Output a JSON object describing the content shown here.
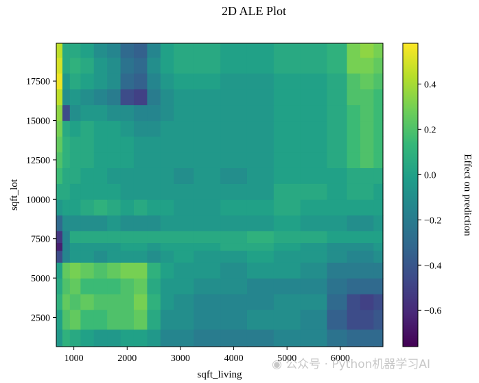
{
  "chart_data": {
    "type": "heatmap",
    "title": "2D ALE Plot",
    "xlabel": "sqft_living",
    "ylabel": "sqft_lot",
    "colorbar_label": "Effect on prediction",
    "colormap": "viridis",
    "xlim": [
      670,
      6800
    ],
    "ylim": [
      650,
      19900
    ],
    "zlim": [
      -0.76,
      0.58
    ],
    "xticks": [
      1000,
      2000,
      3000,
      4000,
      5000,
      6000
    ],
    "yticks": [
      2500,
      5000,
      7500,
      10000,
      12500,
      15000,
      17500
    ],
    "colorbar_ticks": [
      -0.6,
      -0.4,
      -0.2,
      0.0,
      0.2,
      0.4
    ],
    "x_centers": [
      720,
      850,
      1000,
      1250,
      1500,
      1750,
      2000,
      2250,
      2500,
      2750,
      3000,
      3500,
      4000,
      4500,
      5000,
      5500,
      6000,
      6250,
      6500,
      6750
    ],
    "y_centers": [
      1000,
      2500,
      3500,
      4500,
      5500,
      6500,
      7000,
      7500,
      8500,
      9500,
      10500,
      11500,
      12500,
      13500,
      14500,
      15500,
      16500,
      17500,
      18500,
      19500
    ],
    "z": [
      [
        -0.05,
        0.1,
        0.05,
        0.0,
        -0.05,
        -0.05,
        0.0,
        0.0,
        -0.05,
        -0.15,
        -0.15,
        -0.2,
        -0.2,
        -0.2,
        -0.15,
        -0.15,
        -0.25,
        -0.3,
        -0.3,
        -0.3
      ],
      [
        0.0,
        0.2,
        0.25,
        0.15,
        0.15,
        0.2,
        0.2,
        0.25,
        0.05,
        -0.1,
        -0.1,
        -0.15,
        -0.15,
        -0.1,
        -0.1,
        -0.15,
        -0.35,
        -0.45,
        -0.45,
        -0.4
      ],
      [
        0.1,
        0.25,
        0.2,
        0.25,
        0.2,
        0.2,
        0.2,
        0.3,
        0.1,
        -0.05,
        -0.1,
        -0.15,
        -0.15,
        -0.15,
        -0.1,
        -0.1,
        -0.3,
        -0.45,
        -0.5,
        -0.45
      ],
      [
        0.05,
        0.2,
        0.25,
        0.15,
        0.15,
        0.15,
        0.2,
        0.25,
        0.05,
        -0.05,
        -0.05,
        -0.1,
        -0.1,
        -0.15,
        -0.15,
        -0.15,
        -0.25,
        -0.3,
        -0.3,
        -0.3
      ],
      [
        0.0,
        0.25,
        0.3,
        0.25,
        0.2,
        0.25,
        0.3,
        0.3,
        0.1,
        0.0,
        -0.05,
        -0.05,
        -0.1,
        -0.05,
        -0.05,
        -0.1,
        -0.2,
        -0.2,
        -0.2,
        -0.2
      ],
      [
        -0.45,
        -0.15,
        -0.05,
        -0.05,
        -0.1,
        -0.05,
        -0.05,
        -0.05,
        -0.1,
        -0.05,
        0.0,
        -0.05,
        -0.05,
        0.0,
        -0.05,
        -0.05,
        -0.1,
        -0.15,
        -0.15,
        -0.1
      ],
      [
        -0.65,
        -0.15,
        -0.05,
        -0.05,
        -0.05,
        -0.05,
        0.0,
        0.0,
        -0.05,
        0.0,
        0.0,
        0.0,
        0.05,
        0.05,
        0.0,
        -0.05,
        -0.1,
        -0.1,
        -0.1,
        -0.05
      ],
      [
        -0.55,
        -0.15,
        0.05,
        0.05,
        0.05,
        0.05,
        0.05,
        0.05,
        0.05,
        0.05,
        0.05,
        0.05,
        0.05,
        0.1,
        0.05,
        0.05,
        0.0,
        0.0,
        0.0,
        0.0
      ],
      [
        -0.3,
        -0.1,
        -0.1,
        -0.1,
        -0.1,
        -0.05,
        -0.1,
        -0.1,
        -0.1,
        -0.05,
        -0.05,
        -0.05,
        -0.05,
        -0.05,
        0.0,
        -0.05,
        -0.05,
        -0.1,
        -0.1,
        -0.05
      ],
      [
        -0.05,
        0.0,
        0.0,
        0.05,
        0.1,
        0.05,
        0.0,
        0.05,
        0.0,
        0.0,
        -0.05,
        -0.05,
        0.0,
        0.0,
        0.05,
        0.0,
        0.0,
        0.0,
        0.0,
        0.0
      ],
      [
        0.05,
        0.05,
        0.0,
        0.0,
        0.0,
        0.0,
        -0.05,
        -0.05,
        -0.05,
        -0.05,
        -0.05,
        -0.05,
        -0.05,
        -0.05,
        0.05,
        0.05,
        0.0,
        0.05,
        0.05,
        0.0
      ],
      [
        0.15,
        0.05,
        0.05,
        0.0,
        0.0,
        -0.05,
        -0.05,
        -0.05,
        -0.05,
        -0.05,
        -0.1,
        -0.05,
        -0.1,
        -0.05,
        0.0,
        0.0,
        0.0,
        0.05,
        0.05,
        0.05
      ],
      [
        0.2,
        0.1,
        0.05,
        0.05,
        0.0,
        0.0,
        0.0,
        -0.05,
        -0.05,
        -0.05,
        -0.05,
        -0.05,
        -0.05,
        -0.05,
        0.0,
        0.0,
        0.05,
        0.15,
        0.2,
        0.15
      ],
      [
        0.25,
        0.1,
        0.05,
        0.05,
        0.0,
        0.0,
        0.0,
        -0.05,
        -0.05,
        -0.05,
        -0.05,
        -0.05,
        -0.05,
        -0.05,
        0.0,
        0.0,
        0.05,
        0.15,
        0.2,
        0.15
      ],
      [
        0.3,
        0.05,
        0.0,
        0.05,
        0.0,
        0.0,
        -0.05,
        -0.1,
        -0.1,
        -0.05,
        -0.05,
        -0.05,
        -0.05,
        -0.05,
        0.0,
        0.0,
        0.05,
        0.15,
        0.2,
        0.15
      ],
      [
        0.35,
        -0.45,
        -0.1,
        -0.05,
        -0.05,
        -0.1,
        -0.1,
        -0.15,
        -0.15,
        -0.1,
        -0.05,
        -0.05,
        -0.05,
        -0.05,
        0.0,
        0.0,
        0.05,
        0.15,
        0.2,
        0.15
      ],
      [
        0.45,
        -0.1,
        -0.05,
        -0.1,
        -0.15,
        -0.2,
        -0.45,
        -0.5,
        -0.2,
        -0.1,
        -0.05,
        -0.05,
        -0.05,
        -0.05,
        0.0,
        0.0,
        0.05,
        0.2,
        0.2,
        0.15
      ],
      [
        0.55,
        -0.05,
        0.05,
        0.0,
        -0.05,
        -0.1,
        -0.3,
        -0.35,
        -0.15,
        -0.05,
        0.0,
        0.0,
        -0.05,
        -0.05,
        0.0,
        0.0,
        0.05,
        0.2,
        0.25,
        0.2
      ],
      [
        0.5,
        0.05,
        0.1,
        0.05,
        -0.05,
        -0.1,
        -0.25,
        -0.3,
        -0.1,
        0.0,
        0.05,
        0.05,
        0.0,
        0.0,
        0.05,
        0.05,
        0.1,
        0.3,
        0.3,
        0.25
      ],
      [
        0.45,
        0.05,
        0.05,
        0.0,
        -0.1,
        -0.15,
        -0.3,
        -0.35,
        -0.15,
        0.0,
        0.05,
        0.05,
        0.0,
        0.0,
        0.05,
        0.05,
        0.1,
        0.3,
        0.35,
        0.3
      ]
    ]
  },
  "watermark": {
    "text": "公众号 · Python机器学习AI",
    "icon": "wechat-icon"
  }
}
